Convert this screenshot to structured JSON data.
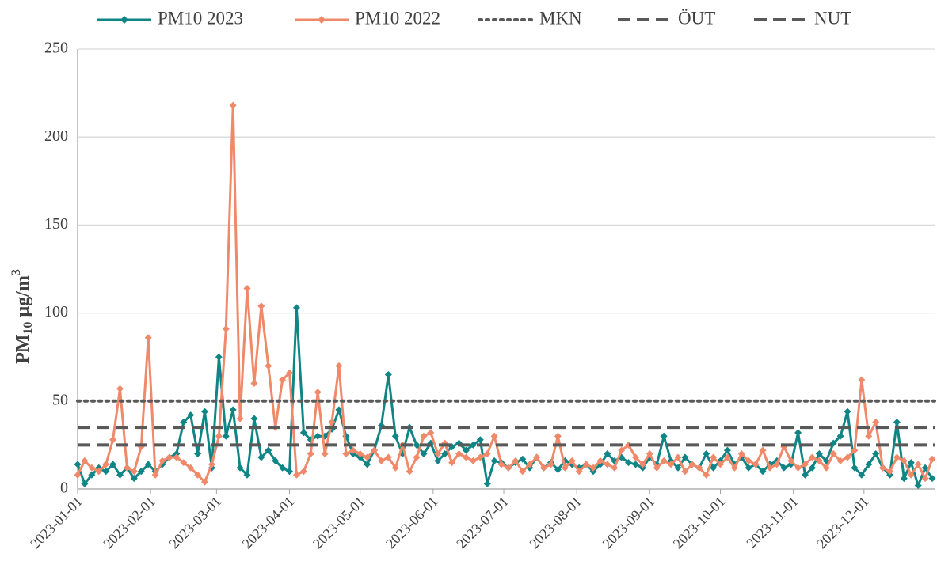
{
  "chart_data": {
    "type": "line",
    "ylabel": [
      "PM",
      "10",
      " µg/m",
      "3"
    ],
    "x": [
      "2023-01-01",
      "2023-01-04",
      "2023-01-07",
      "2023-01-10",
      "2023-01-13",
      "2023-01-16",
      "2023-01-19",
      "2023-01-22",
      "2023-01-25",
      "2023-01-28",
      "2023-01-31",
      "2023-02-03",
      "2023-02-06",
      "2023-02-09",
      "2023-02-12",
      "2023-02-15",
      "2023-02-18",
      "2023-02-21",
      "2023-02-24",
      "2023-02-27",
      "2023-03-02",
      "2023-03-05",
      "2023-03-08",
      "2023-03-11",
      "2023-03-14",
      "2023-03-17",
      "2023-03-20",
      "2023-03-23",
      "2023-03-26",
      "2023-03-29",
      "2023-04-01",
      "2023-04-04",
      "2023-04-07",
      "2023-04-10",
      "2023-04-13",
      "2023-04-16",
      "2023-04-19",
      "2023-04-22",
      "2023-04-25",
      "2023-04-28",
      "2023-05-01",
      "2023-05-04",
      "2023-05-07",
      "2023-05-10",
      "2023-05-13",
      "2023-05-16",
      "2023-05-19",
      "2023-05-22",
      "2023-05-25",
      "2023-05-28",
      "2023-05-31",
      "2023-06-03",
      "2023-06-06",
      "2023-06-09",
      "2023-06-12",
      "2023-06-15",
      "2023-06-18",
      "2023-06-21",
      "2023-06-24",
      "2023-06-27",
      "2023-06-30",
      "2023-07-03",
      "2023-07-06",
      "2023-07-09",
      "2023-07-12",
      "2023-07-15",
      "2023-07-18",
      "2023-07-21",
      "2023-07-24",
      "2023-07-27",
      "2023-07-30",
      "2023-08-02",
      "2023-08-05",
      "2023-08-08",
      "2023-08-11",
      "2023-08-14",
      "2023-08-17",
      "2023-08-20",
      "2023-08-23",
      "2023-08-26",
      "2023-08-29",
      "2023-09-01",
      "2023-09-04",
      "2023-09-07",
      "2023-09-10",
      "2023-09-13",
      "2023-09-16",
      "2023-09-19",
      "2023-09-22",
      "2023-09-25",
      "2023-09-28",
      "2023-10-01",
      "2023-10-04",
      "2023-10-07",
      "2023-10-10",
      "2023-10-13",
      "2023-10-16",
      "2023-10-19",
      "2023-10-22",
      "2023-10-25",
      "2023-10-28",
      "2023-10-31",
      "2023-11-03",
      "2023-11-06",
      "2023-11-09",
      "2023-11-12",
      "2023-11-15",
      "2023-11-18",
      "2023-11-21",
      "2023-11-24",
      "2023-11-27",
      "2023-11-30",
      "2023-12-03",
      "2023-12-06",
      "2023-12-09",
      "2023-12-12",
      "2023-12-15",
      "2023-12-18",
      "2023-12-21",
      "2023-12-24",
      "2023-12-27",
      "2023-12-30"
    ],
    "series": [
      {
        "name": "PM10 2023",
        "color": "#0f8585",
        "values": [
          14,
          3,
          8,
          12,
          10,
          14,
          8,
          12,
          6,
          10,
          14,
          10,
          14,
          18,
          20,
          38,
          42,
          20,
          44,
          12,
          75,
          30,
          45,
          12,
          8,
          40,
          18,
          22,
          16,
          12,
          10,
          103,
          32,
          28,
          30,
          30,
          34,
          45,
          30,
          20,
          18,
          14,
          22,
          36,
          65,
          30,
          20,
          35,
          25,
          20,
          26,
          16,
          20,
          24,
          26,
          22,
          25,
          28,
          3,
          16,
          15,
          12,
          15,
          17,
          12,
          18,
          12,
          15,
          11,
          16,
          14,
          12,
          14,
          10,
          14,
          20,
          16,
          18,
          15,
          14,
          12,
          18,
          14,
          30,
          16,
          12,
          18,
          14,
          12,
          20,
          12,
          16,
          22,
          14,
          18,
          12,
          14,
          10,
          14,
          16,
          12,
          14,
          32,
          8,
          12,
          20,
          16,
          26,
          30,
          44,
          12,
          8,
          14,
          20,
          12,
          8,
          38,
          6,
          15,
          2,
          12,
          6
        ]
      },
      {
        "name": "PM10 2022",
        "color": "#f0896a",
        "values": [
          8,
          16,
          12,
          10,
          14,
          28,
          57,
          12,
          10,
          24,
          86,
          8,
          16,
          18,
          18,
          15,
          12,
          8,
          4,
          14,
          30,
          91,
          218,
          40,
          114,
          60,
          104,
          70,
          35,
          62,
          66,
          8,
          10,
          20,
          55,
          20,
          38,
          70,
          20,
          22,
          20,
          18,
          22,
          16,
          18,
          12,
          25,
          10,
          18,
          30,
          32,
          20,
          26,
          15,
          20,
          18,
          16,
          18,
          20,
          30,
          14,
          12,
          16,
          10,
          14,
          18,
          12,
          14,
          30,
          12,
          16,
          10,
          14,
          12,
          16,
          14,
          12,
          22,
          25,
          18,
          14,
          20,
          12,
          16,
          14,
          18,
          10,
          14,
          12,
          8,
          18,
          14,
          18,
          12,
          20,
          16,
          14,
          22,
          12,
          14,
          24,
          16,
          12,
          14,
          18,
          16,
          12,
          20,
          16,
          18,
          22,
          62,
          30,
          38,
          12,
          10,
          18,
          16,
          8,
          14,
          6,
          17
        ]
      }
    ],
    "reference_lines": [
      {
        "name": "MKN",
        "value": 50,
        "style": "dotted",
        "color": "#595959"
      },
      {
        "name": "ÖUT",
        "value": 35,
        "style": "dashed",
        "color": "#595959"
      },
      {
        "name": "NUT",
        "value": 25,
        "style": "dashed",
        "color": "#595959"
      }
    ],
    "xlim": [
      "2023-01-01",
      "2023-12-31"
    ],
    "xticks": [
      "2023-01-01",
      "2023-02-01",
      "2023-03-01",
      "2023-04-01",
      "2023-05-01",
      "2023-06-01",
      "2023-07-01",
      "2023-08-01",
      "2023-09-01",
      "2023-10-01",
      "2023-11-01",
      "2023-12-01"
    ],
    "ylim": [
      0,
      250
    ],
    "yticks": [
      0,
      50,
      100,
      150,
      200,
      250
    ],
    "grid": true
  }
}
